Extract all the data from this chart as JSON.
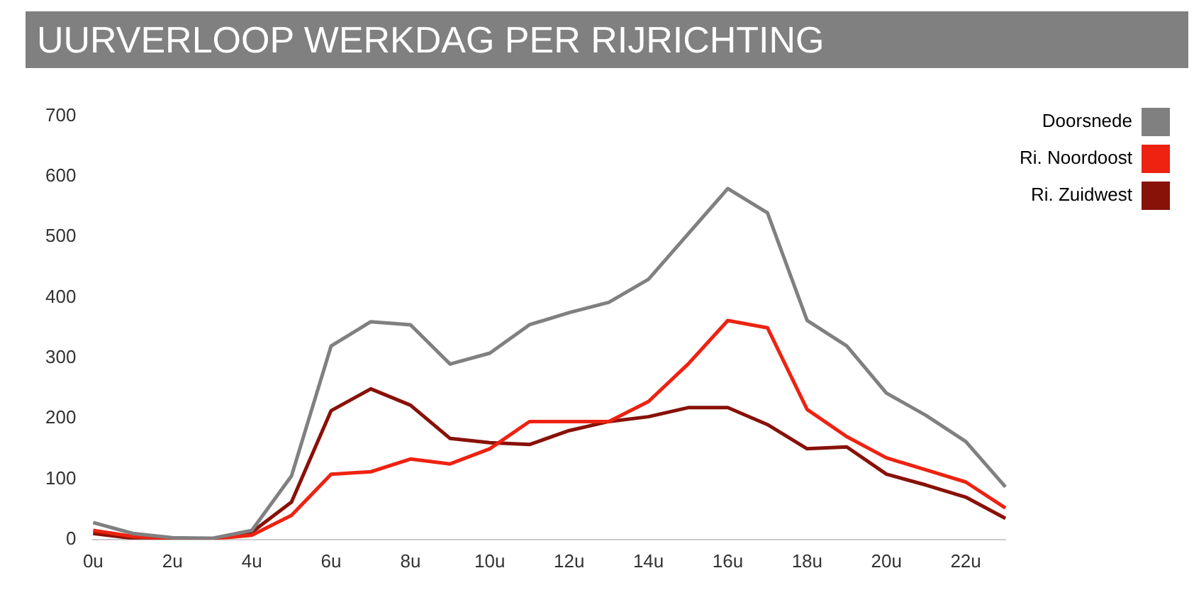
{
  "chart_data": {
    "type": "line",
    "title": "UURVERLOOP WERKDAG PER RIJRICHTING",
    "categories": [
      "0u",
      null,
      "2u",
      null,
      "4u",
      null,
      "6u",
      null,
      "8u",
      null,
      "10u",
      null,
      "12u",
      null,
      "14u",
      null,
      "16u",
      null,
      "18u",
      null,
      "20u",
      null,
      "22u",
      null
    ],
    "series": [
      {
        "name": "Doorsnede",
        "color": "#808080",
        "values": [
          28,
          10,
          3,
          2,
          15,
          105,
          320,
          360,
          355,
          290,
          308,
          355,
          375,
          392,
          430,
          505,
          580,
          540,
          362,
          320,
          242,
          205,
          162,
          87
        ]
      },
      {
        "name": "Ri. Noordoost",
        "color": "#ee2211",
        "values": [
          15,
          5,
          1,
          1,
          7,
          40,
          108,
          112,
          133,
          125,
          150,
          195,
          195,
          195,
          228,
          290,
          362,
          350,
          215,
          170,
          135,
          115,
          95,
          52
        ]
      },
      {
        "name": "Ri. Zuidwest",
        "color": "#881108",
        "values": [
          10,
          2,
          1,
          1,
          12,
          62,
          213,
          249,
          222,
          167,
          160,
          157,
          180,
          195,
          203,
          218,
          218,
          190,
          150,
          153,
          108,
          90,
          70,
          35
        ]
      }
    ],
    "ylim": [
      0,
      700
    ],
    "yticks": [
      0,
      100,
      200,
      300,
      400,
      500,
      600,
      700
    ],
    "grid": false,
    "legend": "top right",
    "marker": "none",
    "line_style": "solid"
  }
}
